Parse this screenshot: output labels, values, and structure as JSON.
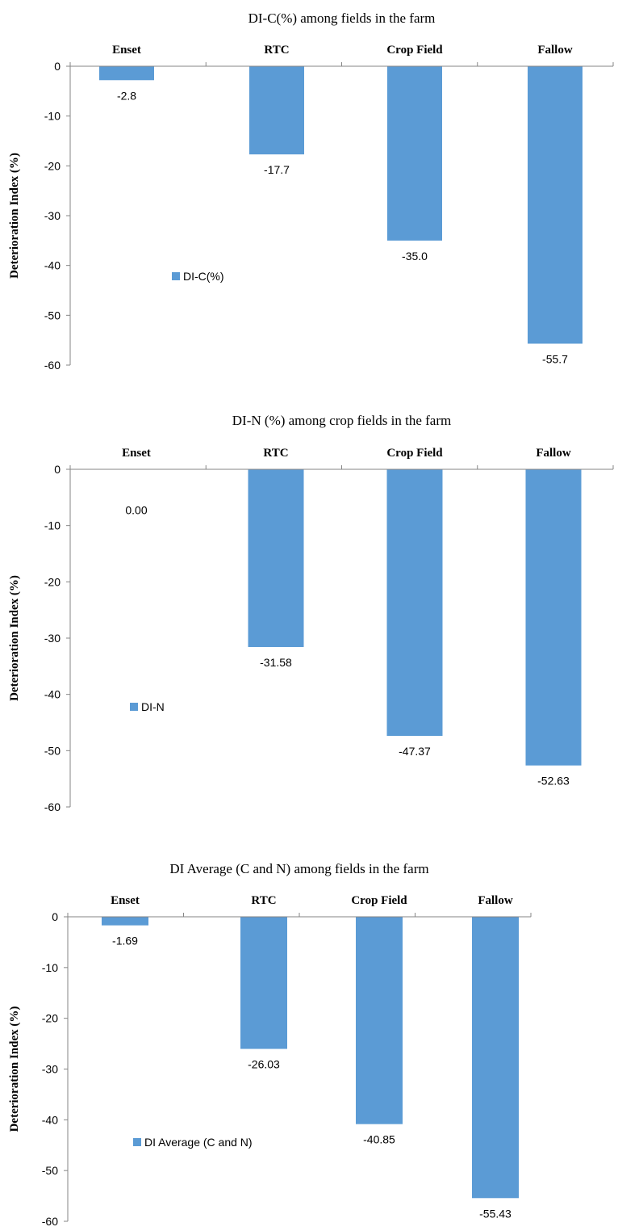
{
  "chart_data": [
    {
      "type": "bar",
      "title": "DI-C(%) among fields in the farm",
      "ylabel": "Deterioration Index (%)",
      "xlabel": "",
      "categories": [
        "Enset",
        "RTC",
        "Crop Field",
        "Fallow"
      ],
      "series": [
        {
          "name": "DI-C(%)",
          "values": [
            -2.8,
            -17.7,
            -35.0,
            -55.7
          ],
          "labels": [
            "-2.8",
            "-17.7",
            "-35.0",
            "-55.7"
          ]
        }
      ],
      "ylim": [
        -60,
        0
      ],
      "yticks": [
        0,
        -10,
        -20,
        -30,
        -40,
        -50,
        -60
      ],
      "category_axis_position": "top",
      "grid": false,
      "legend_position": "center-left",
      "bar_color": "#5b9bd5"
    },
    {
      "type": "bar",
      "title": "DI-N (%) among crop fields in the farm",
      "ylabel": "Deterioration Index (%)",
      "xlabel": "",
      "categories": [
        "Enset",
        "RTC",
        "Crop Field",
        "Fallow"
      ],
      "series": [
        {
          "name": "DI-N",
          "values": [
            0.0,
            -31.58,
            -47.37,
            -52.63
          ],
          "labels": [
            "0.00",
            "-31.58",
            "-47.37",
            "-52.63"
          ]
        }
      ],
      "ylim": [
        -60,
        0
      ],
      "yticks": [
        0,
        -10,
        -20,
        -30,
        -40,
        -50,
        -60
      ],
      "category_axis_position": "top",
      "grid": false,
      "legend_position": "center-left",
      "bar_color": "#5b9bd5"
    },
    {
      "type": "bar",
      "title": "DI Average (C and N) among fields in the farm",
      "ylabel": "Deterioration Index (%)",
      "xlabel": "",
      "categories": [
        "Enset",
        "RTC",
        "Crop Field",
        "Fallow"
      ],
      "series": [
        {
          "name": "DI Average (C and N)",
          "values": [
            -1.69,
            -26.03,
            -40.85,
            -55.43
          ],
          "labels": [
            "-1.69",
            "-26.03",
            "-40.85",
            "-55.43"
          ]
        }
      ],
      "ylim": [
        -60,
        0
      ],
      "yticks": [
        0,
        -10,
        -20,
        -30,
        -40,
        -50,
        -60
      ],
      "category_axis_position": "top",
      "grid": false,
      "legend_position": "center-left",
      "bar_color": "#5b9bd5"
    }
  ]
}
